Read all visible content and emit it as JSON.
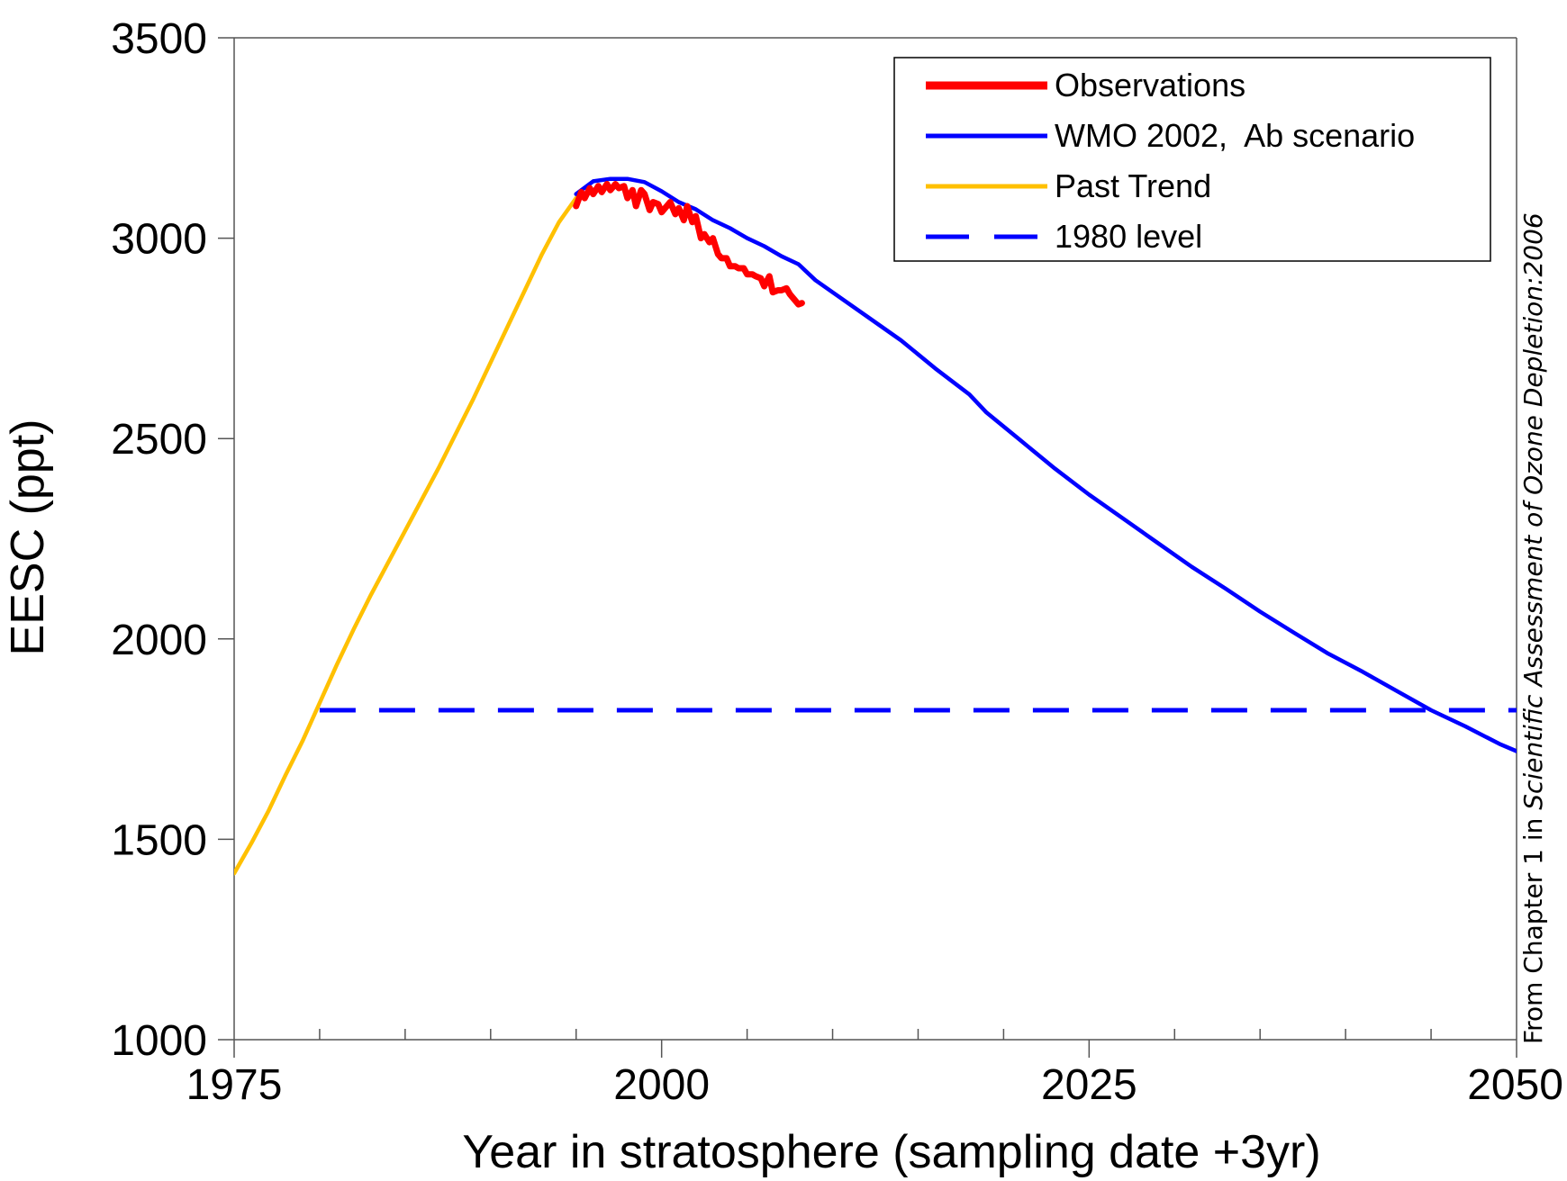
{
  "chart_data": {
    "type": "line",
    "title": "",
    "xlabel": "Year in stratosphere (sampling date +3yr)",
    "ylabel": "EESC (ppt)",
    "xlim": [
      1975,
      2050
    ],
    "ylim": [
      1000,
      3500
    ],
    "x_ticks": [
      1975,
      2000,
      2025,
      2050
    ],
    "x_tick_labels": [
      "1975",
      "2000",
      "2025",
      "2050"
    ],
    "x_minor_ticks": [
      1980,
      1985,
      1990,
      1995,
      2005,
      2010,
      2015,
      2020,
      2030,
      2035,
      2040,
      2045
    ],
    "y_ticks": [
      1000,
      1500,
      2000,
      2500,
      3000,
      3500
    ],
    "y_tick_labels": [
      "1000",
      "1500",
      "2000",
      "2500",
      "3000",
      "3500"
    ],
    "grid": false,
    "legend_position": "top-right",
    "credit": {
      "prefix": "From Chapter 1 in ",
      "italic": "Scientific Assessment of Ozone Depletion:2006"
    },
    "series": [
      {
        "name": "Observations",
        "color": "#ff0000",
        "style": "solid-thick",
        "x": [
          1995.0,
          1995.3,
          1995.5,
          1995.8,
          1996.0,
          1996.3,
          1996.5,
          1996.8,
          1997.0,
          1997.3,
          1997.5,
          1997.8,
          1998.0,
          1998.3,
          1998.5,
          1998.8,
          1999.0,
          1999.3,
          1999.5,
          1999.8,
          2000.0,
          2000.3,
          2000.5,
          2000.8,
          2001.0,
          2001.3,
          2001.5,
          2001.8,
          2002.0,
          2002.3,
          2002.5,
          2002.8,
          2003.0,
          2003.3,
          2003.5,
          2003.8,
          2004.0,
          2004.3,
          2004.5,
          2004.8,
          2005.0,
          2005.3,
          2005.5,
          2005.8,
          2006.0,
          2006.3,
          2006.5,
          2006.8,
          2007.0,
          2007.3,
          2007.5,
          2007.8,
          2008.0,
          2008.2
        ],
        "y": [
          3080,
          3115,
          3100,
          3125,
          3110,
          3130,
          3115,
          3135,
          3120,
          3135,
          3125,
          3130,
          3100,
          3120,
          3080,
          3120,
          3110,
          3070,
          3090,
          3085,
          3065,
          3080,
          3090,
          3060,
          3075,
          3045,
          3080,
          3040,
          3055,
          3000,
          3010,
          2990,
          3000,
          2960,
          2950,
          2950,
          2930,
          2930,
          2925,
          2925,
          2910,
          2910,
          2905,
          2900,
          2880,
          2905,
          2865,
          2870,
          2870,
          2875,
          2860,
          2845,
          2835,
          2838
        ]
      },
      {
        "name": "WMO 2002,  Ab scenario",
        "color": "#0000ff",
        "style": "solid",
        "x": [
          1995.0,
          1996,
          1997,
          1998,
          1999,
          2000,
          2001,
          2002,
          2003,
          2004,
          2005,
          2006,
          2007,
          2008,
          2009,
          2010,
          2012,
          2014,
          2016,
          2018,
          2019,
          2021,
          2023,
          2025,
          2027,
          2029,
          2031,
          2033,
          2035,
          2037,
          2039,
          2041,
          2043,
          2045,
          2047,
          2049,
          2050
        ],
        "y": [
          3110,
          3142,
          3148,
          3148,
          3140,
          3117,
          3090,
          3072,
          3045,
          3025,
          3000,
          2980,
          2955,
          2935,
          2895,
          2865,
          2805,
          2745,
          2675,
          2610,
          2565,
          2495,
          2425,
          2360,
          2300,
          2240,
          2180,
          2125,
          2068,
          2015,
          1963,
          1918,
          1870,
          1822,
          1782,
          1738,
          1720
        ]
      },
      {
        "name": "Past Trend",
        "color": "#ffc000",
        "style": "solid",
        "x": [
          1975,
          1976,
          1977,
          1978,
          1979,
          1980,
          1981,
          1982,
          1983,
          1985,
          1987,
          1989,
          1991,
          1992,
          1993,
          1994,
          1995
        ],
        "y": [
          1415,
          1490,
          1570,
          1660,
          1745,
          1840,
          1935,
          2025,
          2110,
          2270,
          2430,
          2600,
          2780,
          2870,
          2960,
          3040,
          3100
        ]
      },
      {
        "name": "1980 level",
        "color": "#0000ff",
        "style": "dashed",
        "x": [
          1980,
          2050
        ],
        "y": [
          1822,
          1822
        ]
      }
    ]
  }
}
